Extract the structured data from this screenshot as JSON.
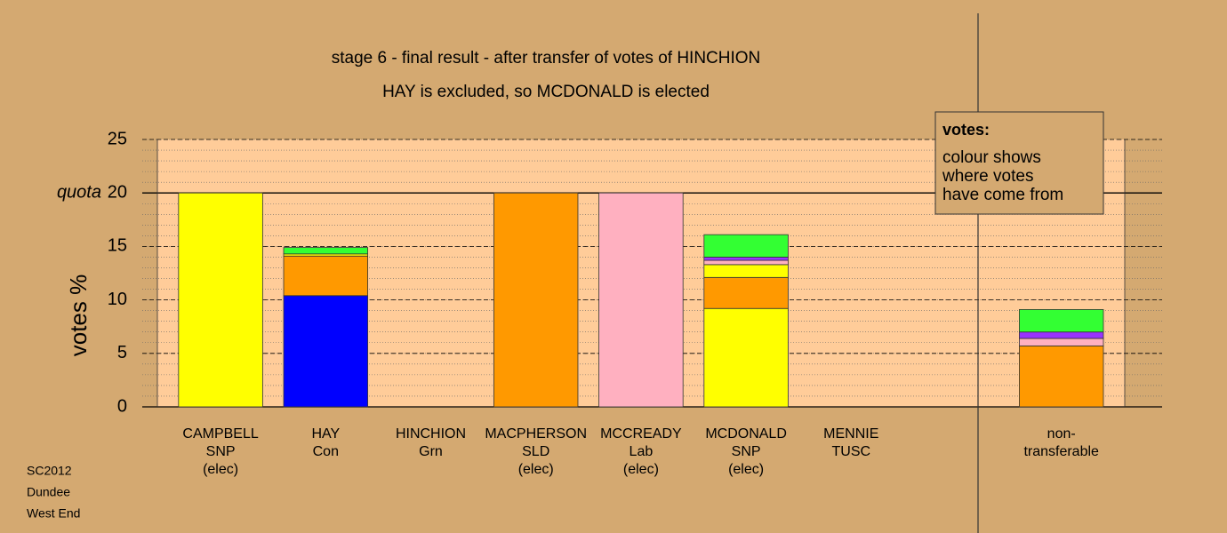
{
  "chart_data": {
    "type": "stacked-bar",
    "title": "stage 6 - final result - after transfer of votes of HINCHION",
    "subtitle": "HAY is excluded, so MCDONALD is elected",
    "ylabel": "votes %",
    "categories": [
      [
        "CAMPBELL",
        "SNP",
        "(elec)"
      ],
      [
        "HAY",
        "Con"
      ],
      [
        "HINCHION",
        "Grn"
      ],
      [
        "MACPHERSON",
        "SLD",
        "(elec)"
      ],
      [
        "MCCREADY",
        "Lab",
        "(elec)"
      ],
      [
        "MCDONALD",
        "SNP",
        "(elec)"
      ],
      [
        "MENNIE",
        "TUSC"
      ],
      null,
      [
        "non-",
        "transferable"
      ]
    ],
    "values": [
      [
        20
      ],
      [
        10.4,
        3.7,
        0.2,
        0.6
      ],
      [
        0
      ],
      [
        20
      ],
      [
        20
      ],
      [
        9.2,
        2.9,
        1.2,
        0.4,
        0.3,
        2.1
      ],
      [
        0
      ],
      null,
      [
        5.7,
        0.7,
        0.6,
        2.1
      ]
    ],
    "colors": [
      [
        "#ffff00"
      ],
      [
        "#0000ff",
        "#ff9900",
        "#ffff00",
        "#33ff33"
      ],
      [
        "#33ff33"
      ],
      [
        "#ff9900"
      ],
      [
        "#ffb0c0"
      ],
      [
        "#ffff00",
        "#ff9900",
        "#ffff00",
        "#ffb0c0",
        "#9933ff",
        "#33ff33"
      ],
      [
        "#9933ff"
      ],
      null,
      [
        "#ff9900",
        "#ffb0c0",
        "#9933ff",
        "#33ff33"
      ]
    ],
    "ylim": [
      0,
      25
    ],
    "yticks": [
      0,
      5,
      10,
      15,
      20,
      25
    ],
    "yminor": 1,
    "quota": 20,
    "quota_label": "quota",
    "legend": {
      "title": "votes:",
      "lines": [
        "colour shows",
        "where votes",
        "have come from"
      ]
    },
    "footer": [
      "SC2012",
      "Dundee",
      "West End"
    ],
    "grid": true
  }
}
